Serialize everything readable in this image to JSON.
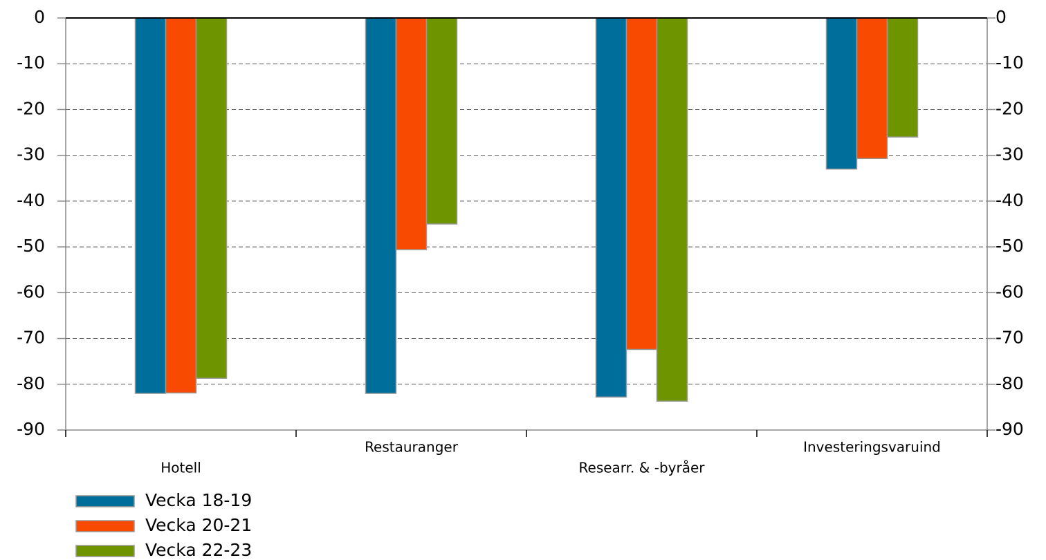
{
  "chart_data": {
    "type": "bar",
    "categories": [
      "Hotell",
      "Restauranger",
      "Researr. & -byråer",
      "Investeringsvaruind"
    ],
    "series": [
      {
        "name": "Vecka 18-19",
        "color": "#006e9a",
        "values": [
          -82,
          -82,
          -82.8,
          -33
        ]
      },
      {
        "name": "Vecka 20-21",
        "color": "#f84a00",
        "values": [
          -81.9,
          -50.6,
          -72.4,
          -30.7
        ]
      },
      {
        "name": "Vecka 22-23",
        "color": "#6e9400",
        "values": [
          -78.7,
          -45,
          -83.7,
          -26
        ]
      }
    ],
    "ylim": [
      -90,
      0
    ],
    "yticks": [
      0,
      -10,
      -20,
      -30,
      -40,
      -50,
      -60,
      -70,
      -80,
      -90
    ],
    "grid": true
  }
}
